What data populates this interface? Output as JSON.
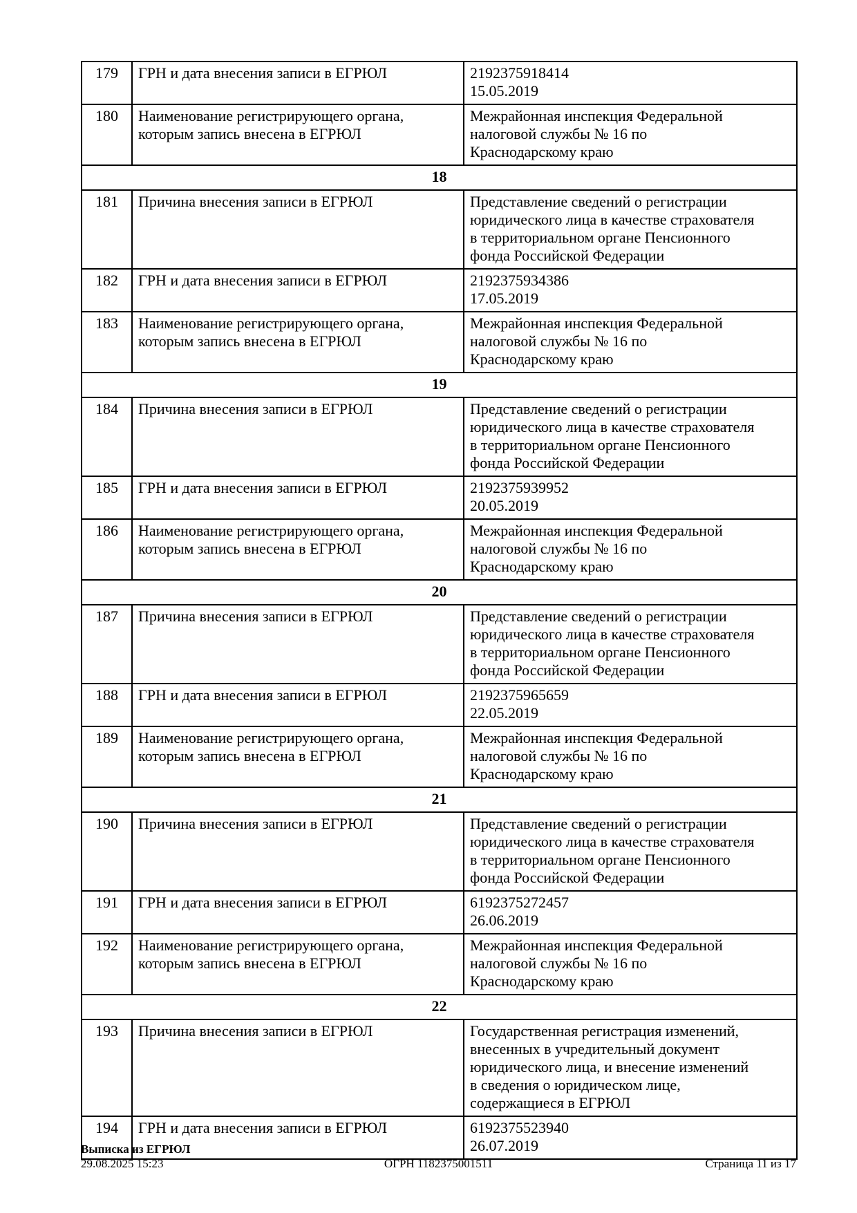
{
  "table": {
    "rows": [
      {
        "type": "data",
        "num": "179",
        "label": "ГРН и дата внесения записи в ЕГРЮЛ",
        "value": "2192375918414\n15.05.2019"
      },
      {
        "type": "data",
        "num": "180",
        "label": "Наименование регистрирующего органа,\nкоторым запись внесена в ЕГРЮЛ",
        "value": "Межрайонная инспекция Федеральной\nналоговой службы № 16 по\nКраснодарскому краю"
      },
      {
        "type": "section",
        "title": "18"
      },
      {
        "type": "data",
        "num": "181",
        "label": "Причина внесения записи в ЕГРЮЛ",
        "value": "Представление сведений о регистрации\nюридического лица в качестве страхователя\nв территориальном органе Пенсионного\nфонда Российской Федерации"
      },
      {
        "type": "data",
        "num": "182",
        "label": "ГРН и дата внесения записи в ЕГРЮЛ",
        "value": "2192375934386\n17.05.2019"
      },
      {
        "type": "data",
        "num": "183",
        "label": "Наименование регистрирующего органа,\nкоторым запись внесена в ЕГРЮЛ",
        "value": "Межрайонная инспекция Федеральной\nналоговой службы № 16 по\nКраснодарскому краю"
      },
      {
        "type": "section",
        "title": "19"
      },
      {
        "type": "data",
        "num": "184",
        "label": "Причина внесения записи в ЕГРЮЛ",
        "value": "Представление сведений о регистрации\nюридического лица в качестве страхователя\nв территориальном органе Пенсионного\nфонда Российской Федерации"
      },
      {
        "type": "data",
        "num": "185",
        "label": "ГРН и дата внесения записи в ЕГРЮЛ",
        "value": "2192375939952\n20.05.2019"
      },
      {
        "type": "data",
        "num": "186",
        "label": "Наименование регистрирующего органа,\nкоторым запись внесена в ЕГРЮЛ",
        "value": "Межрайонная инспекция Федеральной\nналоговой службы № 16 по\nКраснодарскому краю"
      },
      {
        "type": "section",
        "title": "20"
      },
      {
        "type": "data",
        "num": "187",
        "label": "Причина внесения записи в ЕГРЮЛ",
        "value": "Представление сведений о регистрации\nюридического лица в качестве страхователя\nв территориальном органе Пенсионного\nфонда Российской Федерации"
      },
      {
        "type": "data",
        "num": "188",
        "label": "ГРН и дата внесения записи в ЕГРЮЛ",
        "value": "2192375965659\n22.05.2019"
      },
      {
        "type": "data",
        "num": "189",
        "label": "Наименование регистрирующего органа,\nкоторым запись внесена в ЕГРЮЛ",
        "value": "Межрайонная инспекция Федеральной\nналоговой службы № 16 по\nКраснодарскому краю"
      },
      {
        "type": "section",
        "title": "21"
      },
      {
        "type": "data",
        "num": "190",
        "label": "Причина внесения записи в ЕГРЮЛ",
        "value": "Представление сведений о регистрации\nюридического лица в качестве страхователя\nв территориальном органе Пенсионного\nфонда Российской Федерации"
      },
      {
        "type": "data",
        "num": "191",
        "label": "ГРН и дата внесения записи в ЕГРЮЛ",
        "value": "6192375272457\n26.06.2019"
      },
      {
        "type": "data",
        "num": "192",
        "label": "Наименование регистрирующего органа,\nкоторым запись внесена в ЕГРЮЛ",
        "value": "Межрайонная инспекция Федеральной\nналоговой службы № 16 по\nКраснодарскому краю"
      },
      {
        "type": "section",
        "title": "22"
      },
      {
        "type": "data",
        "num": "193",
        "label": "Причина внесения записи в ЕГРЮЛ",
        "value": "Государственная регистрация изменений,\nвнесенных в учредительный документ\nюридического лица, и внесение изменений\nв сведения о юридическом лице,\nсодержащиеся в ЕГРЮЛ"
      },
      {
        "type": "data",
        "num": "194",
        "label": "ГРН и дата внесения записи в ЕГРЮЛ",
        "value": "6192375523940\n26.07.2019"
      }
    ]
  },
  "footer": {
    "title": "Выписка из ЕГРЮЛ",
    "timestamp": "29.08.2025 15:23",
    "ogrn": "ОГРН 1182375001511",
    "page": "Страница 11 из 17"
  }
}
